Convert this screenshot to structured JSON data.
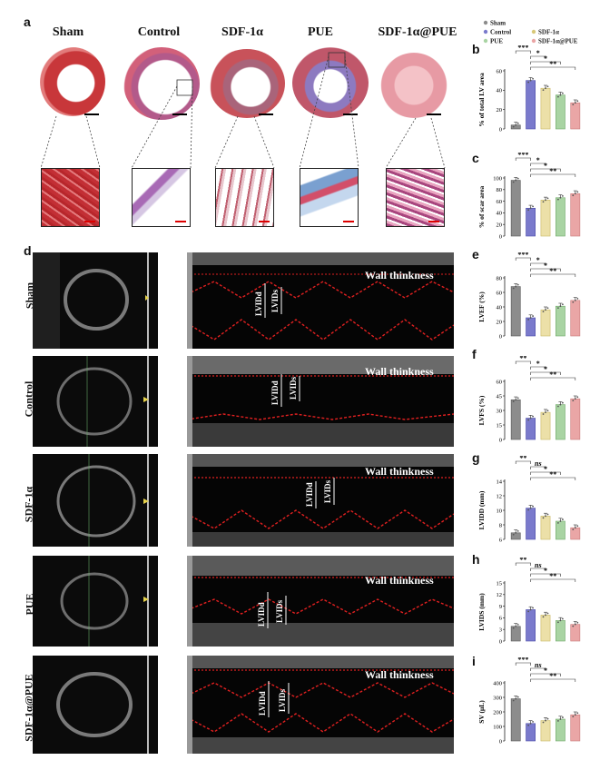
{
  "panel_letters": [
    "a",
    "b",
    "c",
    "d",
    "e",
    "f",
    "g",
    "h",
    "i"
  ],
  "groups": [
    "Sham",
    "Control",
    "SDF-1α",
    "PUE",
    "SDF-1α@PUE"
  ],
  "wall_label": "Wall thinkness",
  "lvid_labels": {
    "d": "LVIDd",
    "s": "LVIDs"
  },
  "legend": {
    "entries": [
      {
        "name": "Sham",
        "color": "#8c8c8c"
      },
      {
        "name": "Control",
        "color": "#7a7acc"
      },
      {
        "name": "SDF-1α",
        "color": "#ece0a8"
      },
      {
        "name": "PUE",
        "color": "#a9d4a3"
      },
      {
        "name": "SDF-1α@PUE",
        "color": "#eaa6a6"
      }
    ]
  },
  "colors": {
    "sham": "#8c8c8c",
    "control": "#7a7acc",
    "sdf": "#ece0a8",
    "pue": "#a9d4a3",
    "combo": "#eaa6a6",
    "trace": "#e02020"
  },
  "chart_data": [
    {
      "id": "b",
      "type": "bar",
      "ylabel": "% of total LV area",
      "ylim": [
        0,
        60
      ],
      "ticks": [
        0,
        20,
        40,
        60
      ],
      "values": [
        4,
        50,
        42,
        35,
        27
      ],
      "sig": [
        {
          "from": 0,
          "to": 1,
          "label": "***"
        },
        {
          "from": 1,
          "to": 2,
          "label": "*"
        },
        {
          "from": 1,
          "to": 3,
          "label": "*"
        },
        {
          "from": 1,
          "to": 4,
          "label": "**"
        }
      ]
    },
    {
      "id": "c",
      "type": "bar",
      "ylabel": "% of scar area",
      "ylim": [
        0,
        100
      ],
      "ticks": [
        0,
        20,
        40,
        60,
        80,
        100
      ],
      "values": [
        96,
        48,
        62,
        66,
        73
      ],
      "sig": [
        {
          "from": 0,
          "to": 1,
          "label": "***"
        },
        {
          "from": 1,
          "to": 2,
          "label": "*"
        },
        {
          "from": 1,
          "to": 3,
          "label": "*"
        },
        {
          "from": 1,
          "to": 4,
          "label": "**"
        }
      ]
    },
    {
      "id": "e",
      "type": "bar",
      "ylabel": "LVEF (%)",
      "ylim": [
        0,
        80
      ],
      "ticks": [
        0,
        20,
        40,
        60,
        80
      ],
      "values": [
        68,
        25,
        36,
        41,
        49
      ],
      "sig": [
        {
          "from": 0,
          "to": 1,
          "label": "***"
        },
        {
          "from": 1,
          "to": 2,
          "label": "*"
        },
        {
          "from": 1,
          "to": 3,
          "label": "*"
        },
        {
          "from": 1,
          "to": 4,
          "label": "**"
        }
      ]
    },
    {
      "id": "f",
      "type": "bar",
      "ylabel": "LVFS (%)",
      "ylim": [
        0,
        60
      ],
      "ticks": [
        0,
        15,
        30,
        45,
        60
      ],
      "values": [
        41,
        22,
        28,
        36,
        42
      ],
      "sig": [
        {
          "from": 0,
          "to": 1,
          "label": "**"
        },
        {
          "from": 1,
          "to": 2,
          "label": "*"
        },
        {
          "from": 1,
          "to": 3,
          "label": "*"
        },
        {
          "from": 1,
          "to": 4,
          "label": "**"
        }
      ]
    },
    {
      "id": "g",
      "type": "bar",
      "ylabel": "LVIDD (mm)",
      "ylim": [
        6,
        14
      ],
      "ticks": [
        6,
        8,
        10,
        12,
        14
      ],
      "values": [
        6.9,
        10.3,
        9.2,
        8.5,
        7.6
      ],
      "sig": [
        {
          "from": 0,
          "to": 1,
          "label": "**"
        },
        {
          "from": 1,
          "to": 2,
          "label": "ns"
        },
        {
          "from": 1,
          "to": 3,
          "label": "*"
        },
        {
          "from": 1,
          "to": 4,
          "label": "**"
        }
      ]
    },
    {
      "id": "h",
      "type": "bar",
      "ylabel": "LVIDS (mm)",
      "ylim": [
        0,
        15
      ],
      "ticks": [
        0,
        3,
        6,
        9,
        12,
        15
      ],
      "values": [
        3.8,
        8.1,
        6.7,
        5.3,
        4.3
      ],
      "sig": [
        {
          "from": 0,
          "to": 1,
          "label": "**"
        },
        {
          "from": 1,
          "to": 2,
          "label": "ns"
        },
        {
          "from": 1,
          "to": 3,
          "label": "*"
        },
        {
          "from": 1,
          "to": 4,
          "label": "**"
        }
      ]
    },
    {
      "id": "i",
      "type": "bar",
      "ylabel": "SV (μL)",
      "ylim": [
        0,
        400
      ],
      "ticks": [
        0,
        100,
        200,
        300,
        400
      ],
      "values": [
        290,
        120,
        140,
        150,
        180
      ],
      "sig": [
        {
          "from": 0,
          "to": 1,
          "label": "***"
        },
        {
          "from": 1,
          "to": 2,
          "label": "ns"
        },
        {
          "from": 1,
          "to": 3,
          "label": "*"
        },
        {
          "from": 1,
          "to": 4,
          "label": "**"
        }
      ]
    }
  ]
}
